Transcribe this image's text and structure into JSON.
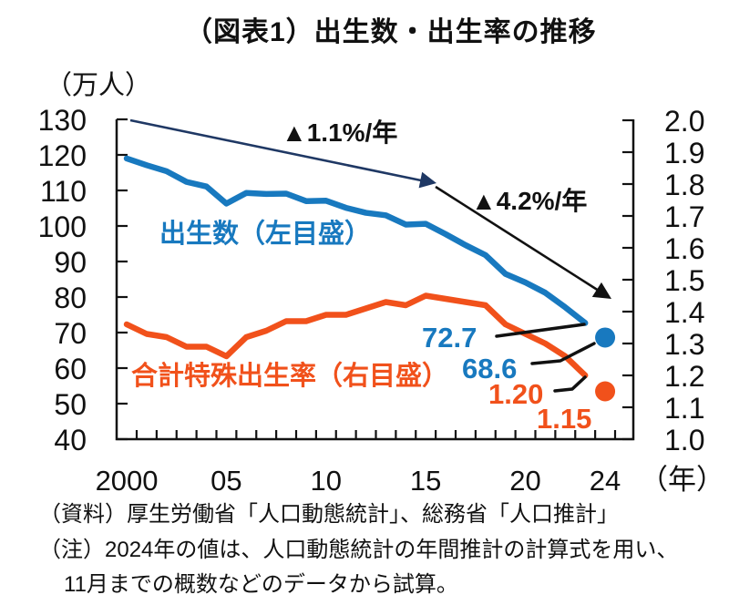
{
  "title": "（図表1）出生数・出生率の推移",
  "chart_data": {
    "type": "line",
    "x": [
      2000,
      2001,
      2002,
      2003,
      2004,
      2005,
      2006,
      2007,
      2008,
      2009,
      2010,
      2011,
      2012,
      2013,
      2014,
      2015,
      2016,
      2017,
      2018,
      2019,
      2020,
      2021,
      2022,
      2023
    ],
    "series": [
      {
        "name": "出生数（左目盛）",
        "axis": "left",
        "values": [
          119.0,
          117.1,
          115.4,
          112.4,
          111.1,
          106.3,
          109.3,
          109.0,
          109.1,
          107.0,
          107.1,
          105.1,
          103.7,
          103.0,
          100.4,
          100.6,
          97.7,
          94.6,
          91.8,
          86.5,
          84.1,
          81.2,
          77.1,
          72.7
        ]
      },
      {
        "name": "合計特殊出生率（右目盛）",
        "axis": "right",
        "values": [
          1.36,
          1.33,
          1.32,
          1.29,
          1.29,
          1.26,
          1.32,
          1.34,
          1.37,
          1.37,
          1.39,
          1.39,
          1.41,
          1.43,
          1.42,
          1.45,
          1.44,
          1.43,
          1.42,
          1.36,
          1.33,
          1.3,
          1.26,
          1.2
        ]
      }
    ],
    "forecast_points": [
      {
        "series": "出生数（左目盛）",
        "x": 2024,
        "value": 68.6,
        "axis": "left"
      },
      {
        "series": "合計特殊出生率（右目盛）",
        "x": 2024,
        "value": 1.15,
        "axis": "right"
      }
    ],
    "left_axis": {
      "unit": "（万人）",
      "min": 40,
      "max": 130,
      "ticks": [
        "130",
        "120",
        "110",
        "100",
        "90",
        "80",
        "70",
        "60",
        "50",
        "40"
      ]
    },
    "right_axis": {
      "min": 1.0,
      "max": 2.0,
      "ticks": [
        "2.0",
        "1.9",
        "1.8",
        "1.7",
        "1.6",
        "1.5",
        "1.4",
        "1.3",
        "1.2",
        "1.1",
        "1.0"
      ]
    },
    "x_axis": {
      "min": 2000,
      "max": 2024,
      "unit": "（年）",
      "labels": [
        {
          "text": "2000",
          "year": 2000
        },
        {
          "text": "05",
          "year": 2005
        },
        {
          "text": "10",
          "year": 2010
        },
        {
          "text": "15",
          "year": 2015
        },
        {
          "text": "20",
          "year": 2020
        },
        {
          "text": "24",
          "year": 2024
        }
      ]
    },
    "annotations": {
      "trend1": "▲1.1%/年",
      "trend2": "▲4.2%/年",
      "births_2023_label": "72.7",
      "births_2024_label": "68.6",
      "rate_2023_label": "1.20",
      "rate_2024_label": "1.15"
    },
    "grid": false,
    "legend_position": "inline"
  },
  "colors": {
    "births": "#1879BF",
    "rate": "#F1511B",
    "trend_arrow_1": "#1F3864",
    "trend_arrow_2": "#111111",
    "axis": "#111111"
  },
  "footer": {
    "source": "（資料）厚生労働省「人口動態統計」、総務省「人口推計」",
    "note1": "（注）2024年の値は、人口動態統計の年間推計の計算式を用い、",
    "note2": "11月までの概数などのデータから試算。"
  }
}
